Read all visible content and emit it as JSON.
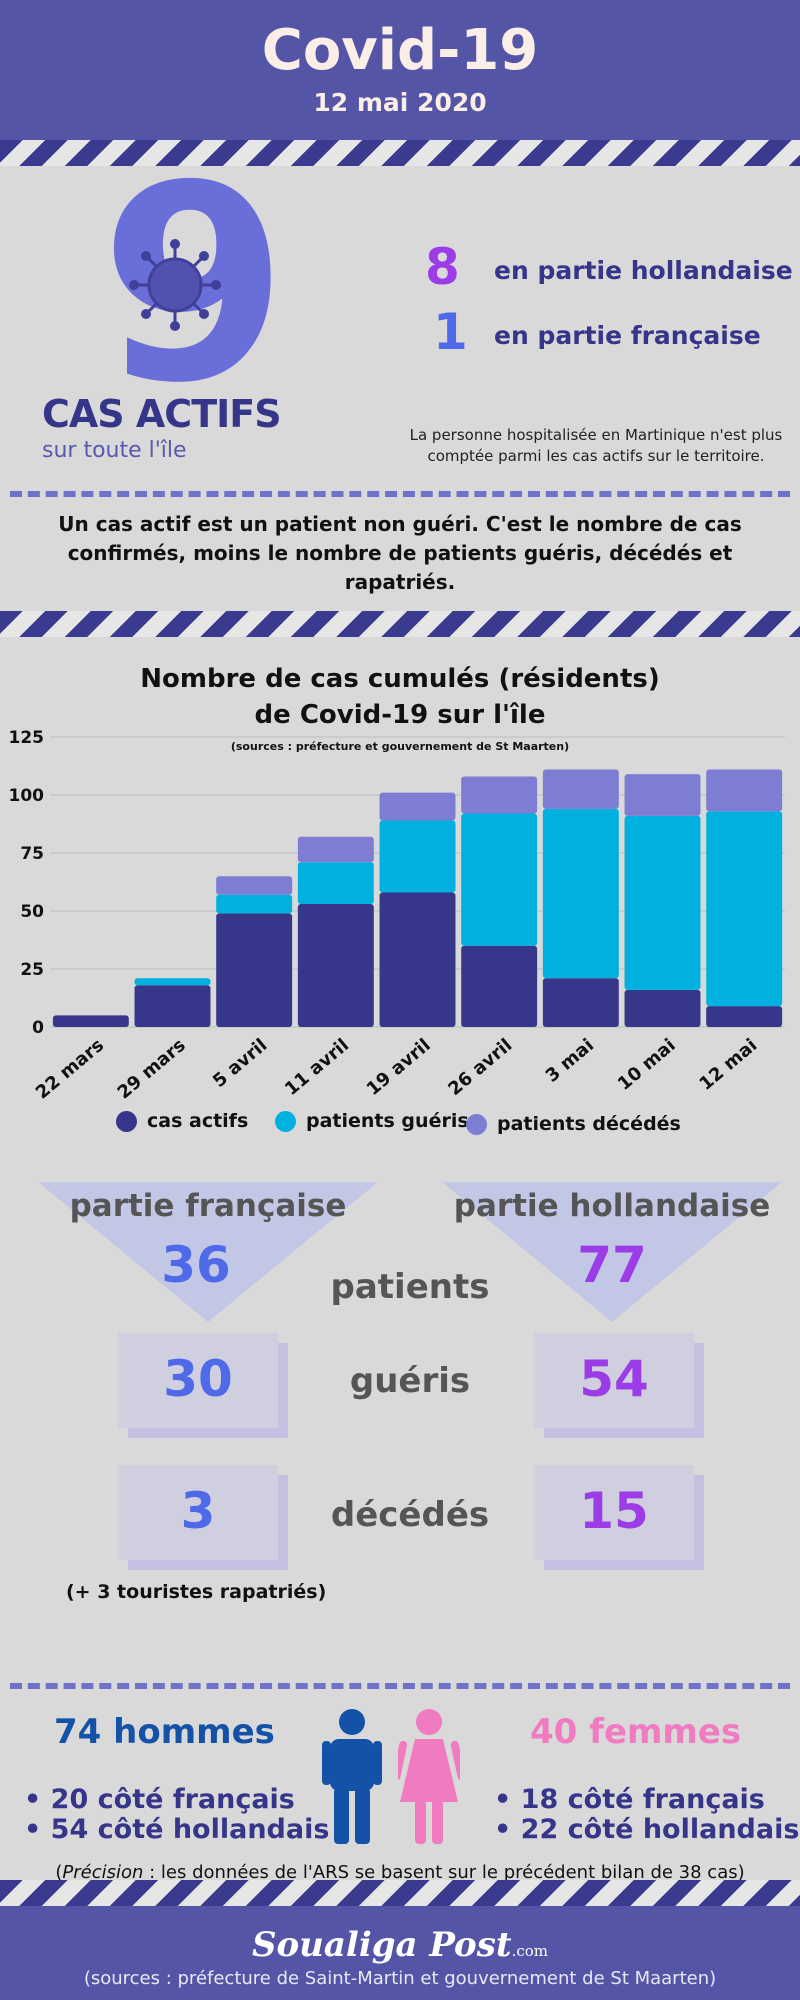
{
  "header": {
    "title": "Covid-19",
    "date": "12 mai 2020"
  },
  "actifs": {
    "total": "9",
    "label": "CAS ACTIFS",
    "sublabel": "sur toute l'île",
    "hollandaise_count": "8",
    "hollandaise_label": "en partie hollandaise",
    "francaise_count": "1",
    "francaise_label": "en partie française",
    "note": "La personne hospitalisée en Martinique n'est plus comptée parmi les cas actifs sur le territoire."
  },
  "definition": "Un cas actif est un patient non guéri. C'est le nombre de cas confirmés, moins le nombre de patients guéris, décédés et rapatriés.",
  "chart_data": {
    "type": "bar",
    "stacked": true,
    "title_line1": "Nombre de  cas cumulés (résidents)",
    "title_line2": "de Covid-19 sur l'île",
    "source": "(sources : préfecture et gouvernement de St Maarten)",
    "categories": [
      "22 mars",
      "29 mars",
      "5 avril",
      "11 avril",
      "19 avril",
      "26 avril",
      "3 mai",
      "10 mai",
      "12 mai"
    ],
    "series": [
      {
        "name": "cas actifs",
        "color": "#36368a",
        "values": [
          5,
          18,
          49,
          53,
          58,
          35,
          21,
          16,
          9
        ]
      },
      {
        "name": "patients guéris",
        "color": "#00b0de",
        "values": [
          0,
          3,
          8,
          18,
          31,
          57,
          73,
          75,
          84
        ]
      },
      {
        "name": "patients décédés",
        "color": "#7d7dd3",
        "values": [
          0,
          0,
          8,
          11,
          12,
          16,
          17,
          18,
          18
        ]
      }
    ],
    "yticks": [
      0,
      25,
      50,
      75,
      100,
      125
    ],
    "ylim": [
      0,
      125
    ],
    "grid": true,
    "legend_position": "bottom"
  },
  "compare": {
    "fr_label": "partie française",
    "nl_label": "partie hollandaise",
    "patients_label": "patients",
    "gueris_label": "guéris",
    "decedes_label": "décédés",
    "fr_patients": "36",
    "nl_patients": "77",
    "fr_gueris": "30",
    "nl_gueris": "54",
    "fr_decedes": "3",
    "nl_decedes": "15",
    "rapatries": "(+ 3 touristes rapatriés)",
    "fr_color": "#4f6ae8",
    "nl_color": "#9b3ce6"
  },
  "gender": {
    "hommes": "74 hommes",
    "femmes": "40 femmes",
    "hommes_fr": "20 côté français",
    "hommes_nl": "54 côté hollandais",
    "femmes_fr": "18 côté français",
    "femmes_nl": "22 côté hollandais",
    "precision_label": "Précision",
    "precision_text": " : les données de l'ARS se basent sur le précédent bilan de 38 cas)",
    "man_color": "#1452a8",
    "woman_color": "#f17bc1"
  },
  "footer": {
    "brand": "Soualiga Post",
    "brand_suffix": ".com",
    "sources": "(sources : préfecture de Saint-Martin et gouvernement de St Maarten)"
  }
}
